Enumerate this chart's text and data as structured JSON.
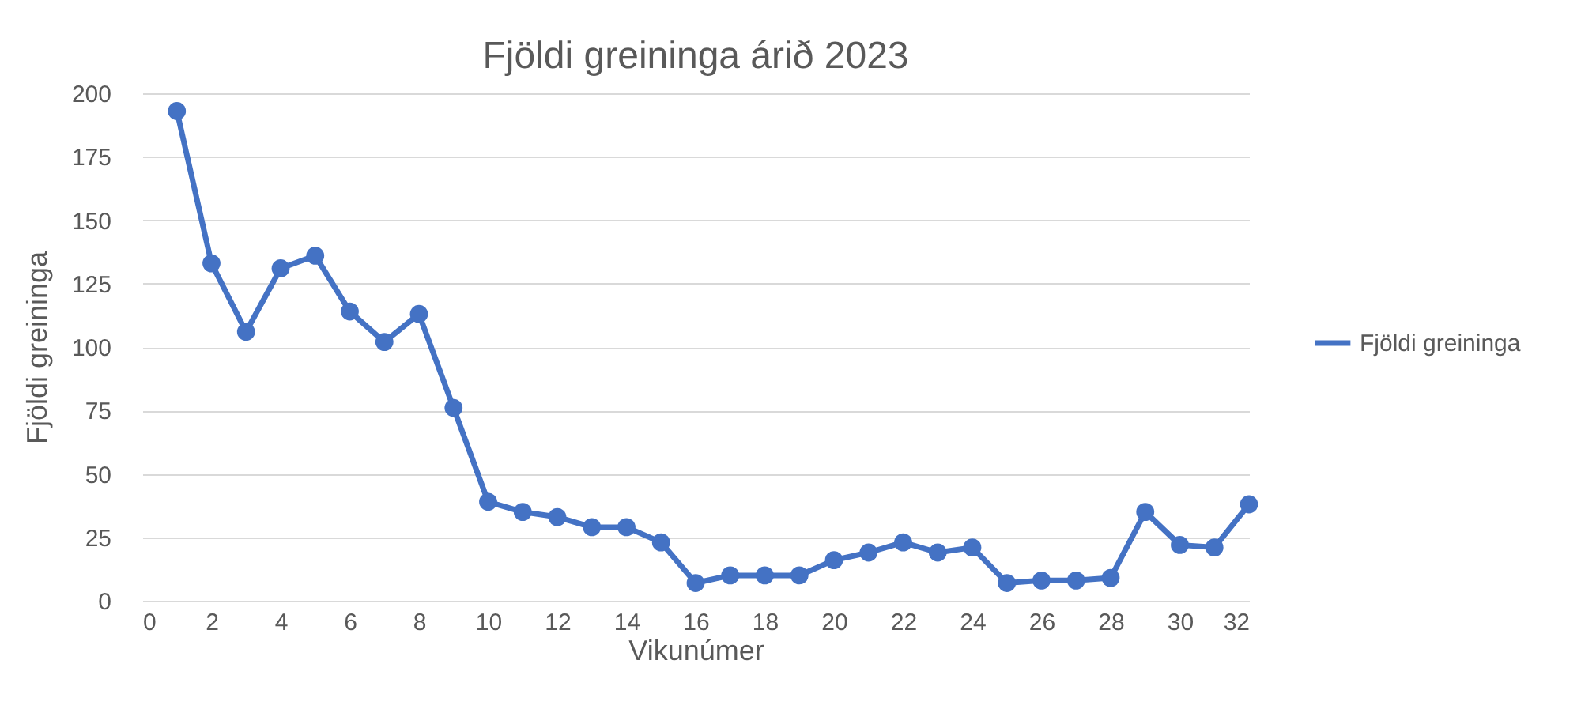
{
  "chart_data": {
    "type": "line",
    "title": "Fjöldi greininga árið 2023",
    "xlabel": "Vikunúmer",
    "ylabel": "Fjöldi greininga",
    "x": [
      1,
      2,
      3,
      4,
      5,
      6,
      7,
      8,
      9,
      10,
      11,
      12,
      13,
      14,
      15,
      16,
      17,
      18,
      19,
      20,
      21,
      22,
      23,
      24,
      25,
      26,
      27,
      28,
      29,
      30,
      31,
      32
    ],
    "series": [
      {
        "name": "Fjöldi greininga",
        "color": "#4472c4",
        "values": [
          193,
          133,
          106,
          131,
          136,
          114,
          102,
          113,
          76,
          39,
          35,
          33,
          29,
          29,
          23,
          7,
          10,
          10,
          10,
          16,
          19,
          23,
          19,
          21,
          7,
          8,
          8,
          9,
          35,
          22,
          21,
          38
        ]
      }
    ],
    "xlim": [
      0,
      32
    ],
    "xticks": [
      0,
      2,
      4,
      6,
      8,
      10,
      12,
      14,
      16,
      18,
      20,
      22,
      24,
      26,
      28,
      30,
      32
    ],
    "ylim": [
      0,
      200
    ],
    "yticks": [
      0,
      25,
      50,
      75,
      100,
      125,
      150,
      175,
      200
    ],
    "grid": "y",
    "legend": "right",
    "marker": "circle",
    "line_style": "solid"
  }
}
